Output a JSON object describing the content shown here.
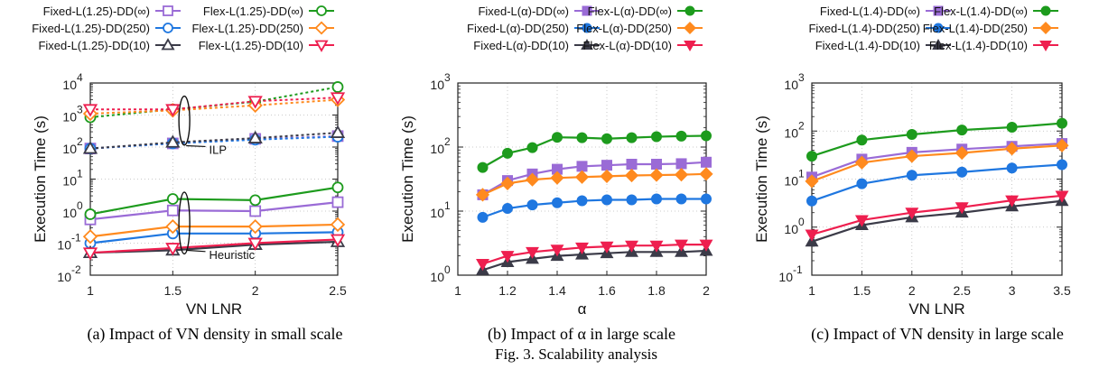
{
  "figure_caption": "Fig. 3.  Scalability analysis",
  "colors": {
    "purple": "#9a6bd6",
    "green": "#1d9b1d",
    "blue": "#1f77e0",
    "orange": "#ff8a1e",
    "black": "#3b3b48",
    "red": "#ee1f4f"
  },
  "chart_data": [
    {
      "type": "line",
      "caption": "(a) Impact of VN density in small scale",
      "xlabel": "VN LNR",
      "ylabel": "Execution Time (s)",
      "yscale": "log",
      "xlim": [
        1,
        2.5
      ],
      "ylim": [
        0.01,
        10000
      ],
      "xticks": [
        "1",
        "1.5",
        "2",
        "2.5"
      ],
      "ytick_labels": [
        {
          "base": "10",
          "exp": "-2"
        },
        {
          "base": "10",
          "exp": "-1"
        },
        {
          "base": "10",
          "exp": "0"
        },
        {
          "base": "10",
          "exp": "1"
        },
        {
          "base": "10",
          "exp": "2"
        },
        {
          "base": "10",
          "exp": "3"
        },
        {
          "base": "10",
          "exp": "4"
        }
      ],
      "markers": "hollow",
      "legend_placement": "top",
      "annotations": [
        {
          "text": "ILP",
          "x": 1.72,
          "y": 80
        },
        {
          "text": "Heuristic",
          "x": 1.72,
          "y": 0.045
        }
      ],
      "x": [
        1,
        1.5,
        2,
        2.5
      ],
      "series": [
        {
          "name": "Fixed-L(1.25)-DD(∞)",
          "color": "purple",
          "marker": "square",
          "group": "heuristic",
          "values": [
            0.55,
            1.05,
            1.0,
            1.9
          ]
        },
        {
          "name": "Flex-L(1.25)-DD(∞)",
          "color": "green",
          "marker": "circle",
          "group": "heuristic",
          "values": [
            0.8,
            2.4,
            2.2,
            5.5
          ]
        },
        {
          "name": "Fixed-L(1.25)-DD(250)",
          "color": "blue",
          "marker": "circle",
          "group": "heuristic",
          "values": [
            0.1,
            0.2,
            0.2,
            0.22
          ]
        },
        {
          "name": "Flex-L(1.25)-DD(250)",
          "color": "orange",
          "marker": "diamond",
          "group": "heuristic",
          "values": [
            0.16,
            0.33,
            0.33,
            0.38
          ]
        },
        {
          "name": "Fixed-L(1.25)-DD(10)",
          "color": "black",
          "marker": "triangle",
          "group": "heuristic",
          "values": [
            0.05,
            0.06,
            0.09,
            0.11
          ]
        },
        {
          "name": "Flex-L(1.25)-DD(10)",
          "color": "red",
          "marker": "triangle-down",
          "group": "heuristic",
          "values": [
            0.05,
            0.07,
            0.1,
            0.13
          ]
        },
        {
          "name": "Fixed-L(1.25)-DD(∞)",
          "color": "purple",
          "marker": "square",
          "group": "ilp",
          "values": [
            90,
            130,
            180,
            220
          ]
        },
        {
          "name": "Flex-L(1.25)-DD(∞)",
          "color": "green",
          "marker": "circle",
          "group": "ilp",
          "values": [
            850,
            1500,
            2600,
            7500
          ]
        },
        {
          "name": "Fixed-L(1.25)-DD(250)",
          "color": "blue",
          "marker": "circle",
          "group": "ilp",
          "values": [
            90,
            130,
            170,
            210
          ]
        },
        {
          "name": "Flex-L(1.25)-DD(250)",
          "color": "orange",
          "marker": "diamond",
          "group": "ilp",
          "values": [
            1100,
            1400,
            2000,
            3000
          ]
        },
        {
          "name": "Fixed-L(1.25)-DD(10)",
          "color": "black",
          "marker": "triangle",
          "group": "ilp",
          "values": [
            90,
            140,
            190,
            280
          ]
        },
        {
          "name": "Flex-L(1.25)-DD(10)",
          "color": "red",
          "marker": "triangle-down",
          "group": "ilp",
          "values": [
            1500,
            1500,
            2700,
            3500
          ]
        }
      ]
    },
    {
      "type": "line",
      "caption": "(b) Impact of α in large scale",
      "xlabel": "α",
      "ylabel": "Execution Time (s)",
      "yscale": "log",
      "xlim": [
        1,
        2
      ],
      "ylim": [
        1,
        1000
      ],
      "xticks": [
        "1",
        "1.2",
        "1.4",
        "1.6",
        "1.8",
        "2"
      ],
      "ytick_labels": [
        {
          "base": "10",
          "exp": "0"
        },
        {
          "base": "10",
          "exp": "1"
        },
        {
          "base": "10",
          "exp": "2"
        },
        {
          "base": "10",
          "exp": "3"
        }
      ],
      "markers": "filled",
      "legend_placement": "top",
      "x": [
        1.1,
        1.2,
        1.3,
        1.4,
        1.5,
        1.6,
        1.7,
        1.8,
        1.9,
        2.0
      ],
      "series": [
        {
          "name": "Fixed-L(α)-DD(∞)",
          "color": "purple",
          "marker": "square",
          "values": [
            18,
            30,
            38,
            45,
            50,
            52,
            54,
            54,
            55,
            58
          ]
        },
        {
          "name": "Flex-L(α)-DD(∞)",
          "color": "green",
          "marker": "circle",
          "values": [
            48,
            80,
            98,
            142,
            140,
            135,
            140,
            145,
            148,
            150
          ]
        },
        {
          "name": "Fixed-L(α)-DD(250)",
          "color": "blue",
          "marker": "circle",
          "values": [
            8,
            11,
            12.5,
            13.5,
            14.5,
            15,
            15,
            15.5,
            15.5,
            15.5
          ]
        },
        {
          "name": "Flex-L(α)-DD(250)",
          "color": "orange",
          "marker": "diamond",
          "values": [
            18,
            27,
            31,
            33,
            34,
            35,
            36,
            36.5,
            37,
            38
          ]
        },
        {
          "name": "Fixed-L(α)-DD(10)",
          "color": "black",
          "marker": "triangle",
          "values": [
            1.2,
            1.6,
            1.8,
            2.0,
            2.1,
            2.2,
            2.3,
            2.3,
            2.3,
            2.4
          ]
        },
        {
          "name": "Flex-L(α)-DD(10)",
          "color": "red",
          "marker": "triangle-down",
          "values": [
            1.5,
            2.0,
            2.3,
            2.5,
            2.7,
            2.8,
            2.9,
            2.9,
            3.0,
            3.0
          ]
        }
      ]
    },
    {
      "type": "line",
      "caption": "(c) Impact of VN density in large scale",
      "xlabel": "VN LNR",
      "ylabel": "Execution Time (s)",
      "yscale": "log",
      "xlim": [
        1,
        3.5
      ],
      "ylim": [
        0.1,
        1000
      ],
      "xticks": [
        "1",
        "1.5",
        "2",
        "2.5",
        "3",
        "3.5"
      ],
      "ytick_labels": [
        {
          "base": "10",
          "exp": "-1"
        },
        {
          "base": "10",
          "exp": "0"
        },
        {
          "base": "10",
          "exp": "1"
        },
        {
          "base": "10",
          "exp": "2"
        },
        {
          "base": "10",
          "exp": "3"
        }
      ],
      "markers": "filled",
      "legend_placement": "top",
      "x": [
        1,
        1.5,
        2,
        2.5,
        3,
        3.5
      ],
      "series": [
        {
          "name": "Fixed-L(1.4)-DD(∞)",
          "color": "purple",
          "marker": "square",
          "values": [
            11,
            26,
            36,
            42,
            48,
            55
          ]
        },
        {
          "name": "Flex-L(1.4)-DD(∞)",
          "color": "green",
          "marker": "circle",
          "values": [
            30,
            65,
            85,
            105,
            120,
            145
          ]
        },
        {
          "name": "Fixed-L(1.4)-DD(250)",
          "color": "blue",
          "marker": "circle",
          "values": [
            3.5,
            8,
            12,
            14,
            17,
            20
          ]
        },
        {
          "name": "Flex-L(1.4)-DD(250)",
          "color": "orange",
          "marker": "diamond",
          "values": [
            9,
            22,
            30,
            35,
            43,
            50
          ]
        },
        {
          "name": "Fixed-L(1.4)-DD(10)",
          "color": "black",
          "marker": "triangle",
          "values": [
            0.5,
            1.1,
            1.6,
            2.0,
            2.7,
            3.5
          ]
        },
        {
          "name": "Flex-L(1.4)-DD(10)",
          "color": "red",
          "marker": "triangle-down",
          "values": [
            0.7,
            1.4,
            2.0,
            2.6,
            3.6,
            4.5
          ]
        }
      ]
    }
  ]
}
